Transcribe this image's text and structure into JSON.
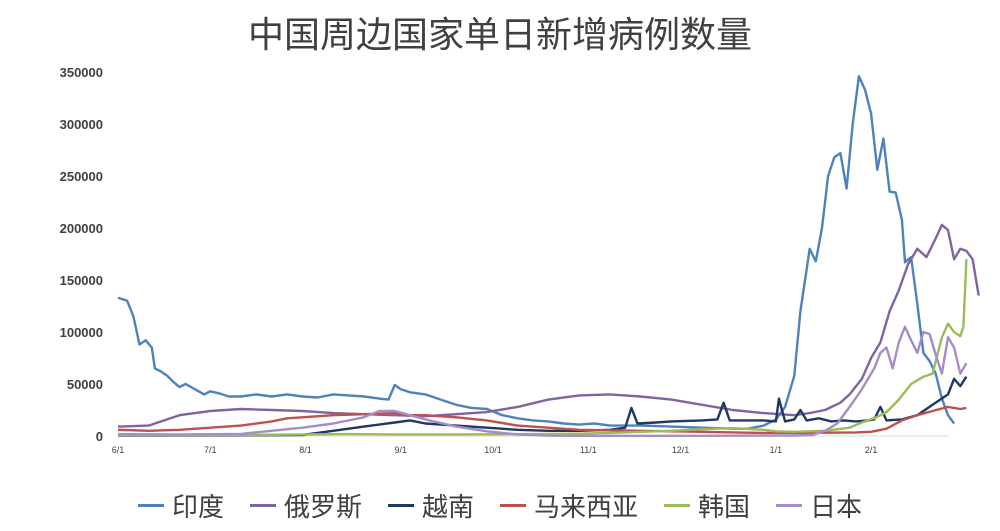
{
  "chart_data": {
    "type": "line",
    "title": "中国周边国家单日新增病例数量",
    "xlabel": "",
    "ylabel": "",
    "ylim": [
      0,
      350000
    ],
    "y_ticks": [
      "0",
      "50000",
      "100000",
      "150000",
      "200000",
      "250000",
      "300000",
      "350000"
    ],
    "x_ticks": [
      {
        "label": "6/1",
        "day": 0
      },
      {
        "label": "7/1",
        "day": 30
      },
      {
        "label": "8/1",
        "day": 61
      },
      {
        "label": "9/1",
        "day": 92
      },
      {
        "label": "10/1",
        "day": 122
      },
      {
        "label": "11/1",
        "day": 153
      },
      {
        "label": "12/1",
        "day": 183
      },
      {
        "label": "1/1",
        "day": 214
      },
      {
        "label": "2/1",
        "day": 245
      }
    ],
    "x_range": [
      0,
      270
    ],
    "grid": false,
    "legend_position": "bottom",
    "series": [
      {
        "name": "印度",
        "color": "#4F81BD",
        "points": [
          [
            0,
            133000
          ],
          [
            3,
            130000
          ],
          [
            5,
            115000
          ],
          [
            7,
            88000
          ],
          [
            9,
            92000
          ],
          [
            11,
            85000
          ],
          [
            12,
            65000
          ],
          [
            14,
            62000
          ],
          [
            16,
            58000
          ],
          [
            18,
            52000
          ],
          [
            20,
            47000
          ],
          [
            22,
            50000
          ],
          [
            25,
            45000
          ],
          [
            28,
            40000
          ],
          [
            30,
            43000
          ],
          [
            33,
            41000
          ],
          [
            36,
            38000
          ],
          [
            40,
            38000
          ],
          [
            45,
            40000
          ],
          [
            50,
            38000
          ],
          [
            55,
            40000
          ],
          [
            60,
            38000
          ],
          [
            65,
            37000
          ],
          [
            70,
            40000
          ],
          [
            75,
            39000
          ],
          [
            80,
            38000
          ],
          [
            85,
            36000
          ],
          [
            88,
            35000
          ],
          [
            90,
            49000
          ],
          [
            92,
            45000
          ],
          [
            95,
            42000
          ],
          [
            100,
            40000
          ],
          [
            105,
            35000
          ],
          [
            110,
            30000
          ],
          [
            115,
            27000
          ],
          [
            120,
            26000
          ],
          [
            125,
            20000
          ],
          [
            130,
            17000
          ],
          [
            135,
            15000
          ],
          [
            140,
            14000
          ],
          [
            145,
            12000
          ],
          [
            150,
            11000
          ],
          [
            155,
            12000
          ],
          [
            160,
            10000
          ],
          [
            170,
            10000
          ],
          [
            180,
            9000
          ],
          [
            190,
            8000
          ],
          [
            200,
            7000
          ],
          [
            205,
            7000
          ],
          [
            210,
            10000
          ],
          [
            214,
            16000
          ],
          [
            217,
            28000
          ],
          [
            220,
            58000
          ],
          [
            222,
            120000
          ],
          [
            225,
            180000
          ],
          [
            227,
            168000
          ],
          [
            229,
            200000
          ],
          [
            231,
            250000
          ],
          [
            233,
            268000
          ],
          [
            235,
            272000
          ],
          [
            237,
            238000
          ],
          [
            239,
            300000
          ],
          [
            241,
            346000
          ],
          [
            243,
            333000
          ],
          [
            245,
            310000
          ],
          [
            247,
            256000
          ],
          [
            249,
            286000
          ],
          [
            251,
            235000
          ],
          [
            253,
            234000
          ],
          [
            255,
            208000
          ],
          [
            256,
            167000
          ],
          [
            258,
            172000
          ],
          [
            260,
            127000
          ],
          [
            262,
            80000
          ],
          [
            264,
            72000
          ],
          [
            266,
            60000
          ],
          [
            268,
            36000
          ],
          [
            270,
            20000
          ],
          [
            272,
            12000
          ]
        ]
      },
      {
        "name": "俄罗斯",
        "color": "#8064A2",
        "points": [
          [
            0,
            9000
          ],
          [
            10,
            10000
          ],
          [
            15,
            15000
          ],
          [
            20,
            20000
          ],
          [
            30,
            24000
          ],
          [
            40,
            26000
          ],
          [
            50,
            25000
          ],
          [
            60,
            24000
          ],
          [
            70,
            22000
          ],
          [
            80,
            21000
          ],
          [
            90,
            20000
          ],
          [
            100,
            19000
          ],
          [
            110,
            21000
          ],
          [
            120,
            23000
          ],
          [
            130,
            28000
          ],
          [
            140,
            35000
          ],
          [
            150,
            39000
          ],
          [
            160,
            40000
          ],
          [
            170,
            38000
          ],
          [
            180,
            35000
          ],
          [
            190,
            30000
          ],
          [
            200,
            25000
          ],
          [
            210,
            22000
          ],
          [
            220,
            20000
          ],
          [
            225,
            22000
          ],
          [
            230,
            25000
          ],
          [
            235,
            32000
          ],
          [
            238,
            40000
          ],
          [
            242,
            55000
          ],
          [
            245,
            75000
          ],
          [
            248,
            90000
          ],
          [
            251,
            120000
          ],
          [
            254,
            140000
          ],
          [
            257,
            165000
          ],
          [
            260,
            180000
          ],
          [
            263,
            172000
          ],
          [
            266,
            190000
          ],
          [
            268,
            203000
          ],
          [
            270,
            198000
          ],
          [
            272,
            170000
          ],
          [
            274,
            180000
          ],
          [
            276,
            178000
          ],
          [
            278,
            170000
          ],
          [
            280,
            135000
          ]
        ]
      },
      {
        "name": "越南",
        "color": "#1F3864",
        "points": [
          [
            0,
            500
          ],
          [
            30,
            500
          ],
          [
            60,
            1000
          ],
          [
            70,
            5000
          ],
          [
            80,
            9000
          ],
          [
            90,
            13000
          ],
          [
            95,
            15000
          ],
          [
            100,
            12000
          ],
          [
            110,
            10000
          ],
          [
            120,
            8000
          ],
          [
            130,
            6000
          ],
          [
            140,
            5000
          ],
          [
            150,
            5000
          ],
          [
            160,
            6000
          ],
          [
            165,
            8000
          ],
          [
            167,
            27000
          ],
          [
            169,
            12000
          ],
          [
            175,
            13000
          ],
          [
            180,
            14000
          ],
          [
            190,
            15000
          ],
          [
            195,
            16000
          ],
          [
            197,
            32000
          ],
          [
            199,
            15000
          ],
          [
            205,
            15000
          ],
          [
            210,
            15000
          ],
          [
            214,
            14000
          ],
          [
            215,
            36000
          ],
          [
            217,
            14000
          ],
          [
            220,
            16000
          ],
          [
            222,
            25000
          ],
          [
            224,
            15000
          ],
          [
            228,
            17000
          ],
          [
            232,
            14000
          ],
          [
            236,
            15000
          ],
          [
            240,
            14000
          ],
          [
            244,
            15000
          ],
          [
            246,
            16000
          ],
          [
            248,
            28000
          ],
          [
            250,
            15000
          ],
          [
            255,
            16000
          ],
          [
            260,
            20000
          ],
          [
            265,
            30000
          ],
          [
            270,
            40000
          ],
          [
            272,
            55000
          ],
          [
            274,
            48000
          ],
          [
            276,
            57000
          ]
        ]
      },
      {
        "name": "马来西亚",
        "color": "#C0504D",
        "points": [
          [
            0,
            6000
          ],
          [
            10,
            5000
          ],
          [
            20,
            6000
          ],
          [
            30,
            8000
          ],
          [
            40,
            10000
          ],
          [
            50,
            14000
          ],
          [
            55,
            17000
          ],
          [
            60,
            18000
          ],
          [
            70,
            20000
          ],
          [
            80,
            21000
          ],
          [
            90,
            22000
          ],
          [
            95,
            20000
          ],
          [
            100,
            20000
          ],
          [
            110,
            18000
          ],
          [
            120,
            15000
          ],
          [
            130,
            10000
          ],
          [
            140,
            8000
          ],
          [
            150,
            6000
          ],
          [
            160,
            5500
          ],
          [
            170,
            5000
          ],
          [
            180,
            4500
          ],
          [
            190,
            4000
          ],
          [
            200,
            3500
          ],
          [
            210,
            3000
          ],
          [
            220,
            3000
          ],
          [
            230,
            3200
          ],
          [
            240,
            3500
          ],
          [
            245,
            4000
          ],
          [
            250,
            7000
          ],
          [
            255,
            15000
          ],
          [
            260,
            20000
          ],
          [
            265,
            24000
          ],
          [
            270,
            28000
          ],
          [
            274,
            26000
          ],
          [
            276,
            27000
          ]
        ]
      },
      {
        "name": "韩国",
        "color": "#9BBB59",
        "points": [
          [
            0,
            800
          ],
          [
            30,
            700
          ],
          [
            60,
            1500
          ],
          [
            75,
            1800
          ],
          [
            90,
            1500
          ],
          [
            110,
            1500
          ],
          [
            130,
            1700
          ],
          [
            150,
            2200
          ],
          [
            160,
            3000
          ],
          [
            170,
            4000
          ],
          [
            180,
            5000
          ],
          [
            190,
            6500
          ],
          [
            200,
            7500
          ],
          [
            210,
            6000
          ],
          [
            214,
            4500
          ],
          [
            220,
            4000
          ],
          [
            230,
            5000
          ],
          [
            238,
            8000
          ],
          [
            242,
            13000
          ],
          [
            246,
            17000
          ],
          [
            250,
            23000
          ],
          [
            254,
            35000
          ],
          [
            258,
            50000
          ],
          [
            262,
            57000
          ],
          [
            265,
            60000
          ],
          [
            268,
            95000
          ],
          [
            270,
            108000
          ],
          [
            272,
            100000
          ],
          [
            274,
            96000
          ],
          [
            275,
            105000
          ],
          [
            276,
            170000
          ]
        ]
      },
      {
        "name": "日本",
        "color": "#A68CC8",
        "points": [
          [
            0,
            1800
          ],
          [
            20,
            1500
          ],
          [
            40,
            2000
          ],
          [
            60,
            8000
          ],
          [
            70,
            12000
          ],
          [
            80,
            18000
          ],
          [
            85,
            24000
          ],
          [
            90,
            24000
          ],
          [
            95,
            20000
          ],
          [
            100,
            16000
          ],
          [
            110,
            9000
          ],
          [
            120,
            4500
          ],
          [
            130,
            1500
          ],
          [
            140,
            300
          ],
          [
            150,
            200
          ],
          [
            160,
            150
          ],
          [
            170,
            150
          ],
          [
            180,
            200
          ],
          [
            190,
            200
          ],
          [
            200,
            300
          ],
          [
            210,
            400
          ],
          [
            220,
            500
          ],
          [
            226,
            1000
          ],
          [
            230,
            5000
          ],
          [
            234,
            12000
          ],
          [
            238,
            28000
          ],
          [
            242,
            45000
          ],
          [
            246,
            65000
          ],
          [
            248,
            80000
          ],
          [
            250,
            85000
          ],
          [
            252,
            65000
          ],
          [
            254,
            90000
          ],
          [
            256,
            105000
          ],
          [
            258,
            92000
          ],
          [
            260,
            80000
          ],
          [
            262,
            100000
          ],
          [
            264,
            98000
          ],
          [
            266,
            78000
          ],
          [
            268,
            60000
          ],
          [
            270,
            95000
          ],
          [
            272,
            85000
          ],
          [
            274,
            60000
          ],
          [
            276,
            70000
          ]
        ]
      }
    ]
  }
}
